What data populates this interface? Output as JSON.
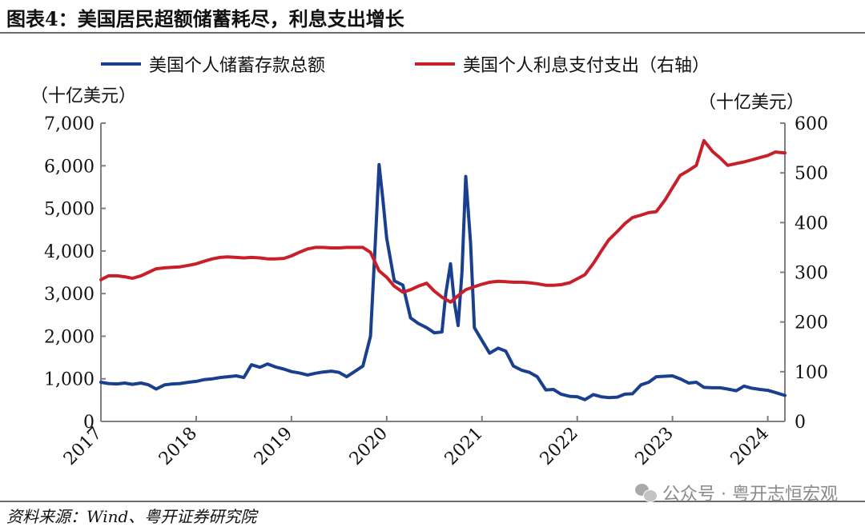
{
  "title": "图表4：美国居民超额储蓄耗尽，利息支出增长",
  "source": "资料来源：Wind、粤开证券研究院",
  "watermark": "公众号 · 粤开志恒宏观",
  "colors": {
    "savings": "#1a3f8f",
    "interest": "#c8202a",
    "axis": "#7f7f7f"
  },
  "chart_data": {
    "type": "line",
    "left_unit": "（十亿美元）",
    "right_unit": "（十亿美元）",
    "x_ticks": [
      "2017",
      "2018",
      "2019",
      "2020",
      "2021",
      "2022",
      "2023",
      "2024"
    ],
    "x_range": [
      2017.0,
      2024.18
    ],
    "left_ylim": [
      0,
      7000
    ],
    "left_ticks": [
      "0",
      "1,000",
      "2,000",
      "3,000",
      "4,000",
      "5,000",
      "6,000",
      "7,000"
    ],
    "right_ylim": [
      0,
      600
    ],
    "right_ticks": [
      "0",
      "100",
      "200",
      "300",
      "400",
      "500",
      "600"
    ],
    "legend_position": "top",
    "series": [
      {
        "name": "美国个人储蓄存款总额",
        "axis": "left",
        "points": [
          [
            2017.0,
            920
          ],
          [
            2017.08,
            890
          ],
          [
            2017.17,
            880
          ],
          [
            2017.25,
            900
          ],
          [
            2017.33,
            870
          ],
          [
            2017.42,
            900
          ],
          [
            2017.5,
            860
          ],
          [
            2017.58,
            760
          ],
          [
            2017.67,
            860
          ],
          [
            2017.75,
            880
          ],
          [
            2017.83,
            890
          ],
          [
            2017.92,
            920
          ],
          [
            2018.0,
            940
          ],
          [
            2018.08,
            980
          ],
          [
            2018.17,
            1000
          ],
          [
            2018.25,
            1030
          ],
          [
            2018.33,
            1050
          ],
          [
            2018.42,
            1070
          ],
          [
            2018.5,
            1030
          ],
          [
            2018.58,
            1330
          ],
          [
            2018.67,
            1270
          ],
          [
            2018.75,
            1350
          ],
          [
            2018.83,
            1280
          ],
          [
            2018.92,
            1230
          ],
          [
            2019.0,
            1170
          ],
          [
            2019.08,
            1140
          ],
          [
            2019.17,
            1090
          ],
          [
            2019.25,
            1130
          ],
          [
            2019.33,
            1160
          ],
          [
            2019.42,
            1180
          ],
          [
            2019.5,
            1150
          ],
          [
            2019.58,
            1050
          ],
          [
            2019.67,
            1180
          ],
          [
            2019.75,
            1300
          ],
          [
            2019.83,
            2000
          ],
          [
            2019.88,
            4200
          ],
          [
            2019.92,
            6030
          ],
          [
            2019.96,
            5200
          ],
          [
            2020.0,
            4300
          ],
          [
            2020.08,
            3300
          ],
          [
            2020.17,
            3200
          ],
          [
            2020.25,
            2430
          ],
          [
            2020.33,
            2300
          ],
          [
            2020.42,
            2200
          ],
          [
            2020.5,
            2080
          ],
          [
            2020.58,
            2100
          ],
          [
            2020.62,
            3000
          ],
          [
            2020.67,
            3700
          ],
          [
            2020.71,
            2800
          ],
          [
            2020.75,
            2250
          ],
          [
            2020.79,
            3500
          ],
          [
            2020.83,
            5750
          ],
          [
            2020.88,
            4200
          ],
          [
            2020.92,
            2200
          ],
          [
            2021.0,
            1900
          ],
          [
            2021.08,
            1600
          ],
          [
            2021.17,
            1720
          ],
          [
            2021.25,
            1650
          ],
          [
            2021.33,
            1300
          ],
          [
            2021.42,
            1200
          ],
          [
            2021.5,
            1150
          ],
          [
            2021.58,
            1050
          ],
          [
            2021.67,
            740
          ],
          [
            2021.75,
            750
          ],
          [
            2021.83,
            640
          ],
          [
            2021.92,
            590
          ],
          [
            2022.0,
            580
          ],
          [
            2022.08,
            510
          ],
          [
            2022.17,
            630
          ],
          [
            2022.25,
            580
          ],
          [
            2022.33,
            560
          ],
          [
            2022.42,
            570
          ],
          [
            2022.5,
            640
          ],
          [
            2022.58,
            650
          ],
          [
            2022.67,
            860
          ],
          [
            2022.75,
            920
          ],
          [
            2022.83,
            1050
          ],
          [
            2022.92,
            1060
          ],
          [
            2023.0,
            1070
          ],
          [
            2023.08,
            1000
          ],
          [
            2023.17,
            900
          ],
          [
            2023.25,
            920
          ],
          [
            2023.33,
            800
          ],
          [
            2023.42,
            790
          ],
          [
            2023.5,
            790
          ],
          [
            2023.58,
            760
          ],
          [
            2023.67,
            720
          ],
          [
            2023.75,
            830
          ],
          [
            2023.83,
            780
          ],
          [
            2023.92,
            750
          ],
          [
            2024.0,
            730
          ],
          [
            2024.08,
            680
          ],
          [
            2024.18,
            610
          ]
        ]
      },
      {
        "name": "美国个人利息支付支出（右轴）",
        "axis": "right",
        "points": [
          [
            2017.0,
            285
          ],
          [
            2017.08,
            293
          ],
          [
            2017.17,
            293
          ],
          [
            2017.25,
            291
          ],
          [
            2017.33,
            288
          ],
          [
            2017.42,
            293
          ],
          [
            2017.5,
            300
          ],
          [
            2017.58,
            307
          ],
          [
            2017.67,
            309
          ],
          [
            2017.75,
            310
          ],
          [
            2017.83,
            311
          ],
          [
            2017.92,
            314
          ],
          [
            2018.0,
            317
          ],
          [
            2018.08,
            322
          ],
          [
            2018.17,
            327
          ],
          [
            2018.25,
            330
          ],
          [
            2018.33,
            331
          ],
          [
            2018.42,
            330
          ],
          [
            2018.5,
            329
          ],
          [
            2018.58,
            330
          ],
          [
            2018.67,
            329
          ],
          [
            2018.75,
            327
          ],
          [
            2018.83,
            327
          ],
          [
            2018.92,
            328
          ],
          [
            2019.0,
            333
          ],
          [
            2019.08,
            340
          ],
          [
            2019.17,
            347
          ],
          [
            2019.25,
            350
          ],
          [
            2019.33,
            350
          ],
          [
            2019.42,
            349
          ],
          [
            2019.5,
            349
          ],
          [
            2019.58,
            350
          ],
          [
            2019.67,
            350
          ],
          [
            2019.75,
            350
          ],
          [
            2019.83,
            340
          ],
          [
            2019.92,
            303
          ],
          [
            2020.0,
            290
          ],
          [
            2020.08,
            272
          ],
          [
            2020.17,
            260
          ],
          [
            2020.25,
            265
          ],
          [
            2020.33,
            272
          ],
          [
            2020.42,
            278
          ],
          [
            2020.5,
            262
          ],
          [
            2020.58,
            250
          ],
          [
            2020.67,
            240
          ],
          [
            2020.75,
            253
          ],
          [
            2020.83,
            265
          ],
          [
            2020.92,
            271
          ],
          [
            2021.0,
            276
          ],
          [
            2021.08,
            280
          ],
          [
            2021.17,
            282
          ],
          [
            2021.25,
            281
          ],
          [
            2021.33,
            280
          ],
          [
            2021.42,
            280
          ],
          [
            2021.5,
            279
          ],
          [
            2021.58,
            277
          ],
          [
            2021.67,
            274
          ],
          [
            2021.75,
            274
          ],
          [
            2021.83,
            275
          ],
          [
            2021.92,
            279
          ],
          [
            2022.0,
            287
          ],
          [
            2022.08,
            295
          ],
          [
            2022.17,
            318
          ],
          [
            2022.25,
            342
          ],
          [
            2022.33,
            365
          ],
          [
            2022.42,
            382
          ],
          [
            2022.5,
            398
          ],
          [
            2022.58,
            410
          ],
          [
            2022.67,
            415
          ],
          [
            2022.75,
            420
          ],
          [
            2022.83,
            422
          ],
          [
            2022.92,
            445
          ],
          [
            2023.0,
            470
          ],
          [
            2023.08,
            495
          ],
          [
            2023.17,
            505
          ],
          [
            2023.25,
            515
          ],
          [
            2023.33,
            565
          ],
          [
            2023.42,
            543
          ],
          [
            2023.5,
            530
          ],
          [
            2023.58,
            515
          ],
          [
            2023.67,
            519
          ],
          [
            2023.75,
            522
          ],
          [
            2023.83,
            526
          ],
          [
            2023.92,
            531
          ],
          [
            2024.0,
            535
          ],
          [
            2024.08,
            542
          ],
          [
            2024.18,
            540
          ]
        ]
      }
    ]
  }
}
